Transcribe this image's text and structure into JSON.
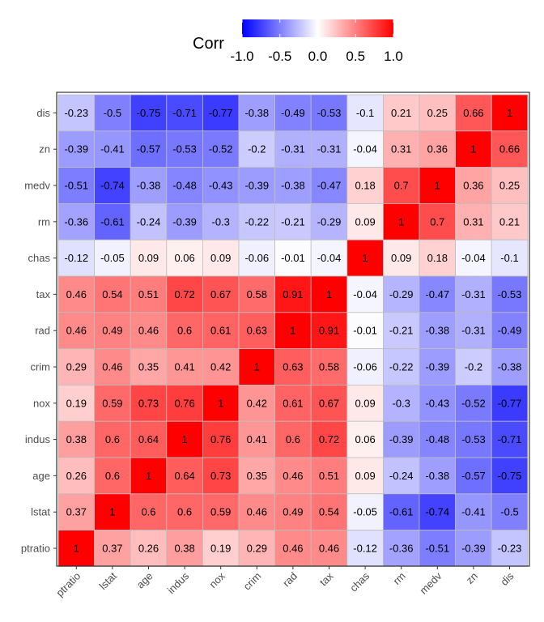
{
  "chart_data": {
    "type": "heatmap",
    "legend": {
      "title": "Corr",
      "placement": "top",
      "ticks": [
        "-1.0",
        "-0.5",
        "0.0",
        "0.5",
        "1.0"
      ],
      "tick_values": [
        -1,
        -0.5,
        0,
        0.5,
        1
      ],
      "range": [
        -1,
        1
      ]
    },
    "colors": {
      "low": "#0000FF",
      "mid": "#FFFFFF",
      "high": "#FF0000"
    },
    "x_labels": [
      "ptratio",
      "lstat",
      "age",
      "indus",
      "nox",
      "crim",
      "rad",
      "tax",
      "chas",
      "rm",
      "medv",
      "zn",
      "dis"
    ],
    "y_labels_top_to_bottom": [
      "dis",
      "zn",
      "medv",
      "rm",
      "chas",
      "tax",
      "rad",
      "crim",
      "nox",
      "indus",
      "age",
      "lstat",
      "ptratio"
    ],
    "values": [
      [
        -0.23,
        -0.5,
        -0.75,
        -0.71,
        -0.77,
        -0.38,
        -0.49,
        -0.53,
        -0.1,
        0.21,
        0.25,
        0.66,
        1
      ],
      [
        -0.39,
        -0.41,
        -0.57,
        -0.53,
        -0.52,
        -0.2,
        -0.31,
        -0.31,
        -0.04,
        0.31,
        0.36,
        1,
        0.66
      ],
      [
        -0.51,
        -0.74,
        -0.38,
        -0.48,
        -0.43,
        -0.39,
        -0.38,
        -0.47,
        0.18,
        0.7,
        1,
        0.36,
        0.25
      ],
      [
        -0.36,
        -0.61,
        -0.24,
        -0.39,
        -0.3,
        -0.22,
        -0.21,
        -0.29,
        0.09,
        1,
        0.7,
        0.31,
        0.21
      ],
      [
        -0.12,
        -0.05,
        0.09,
        0.06,
        0.09,
        -0.06,
        -0.01,
        -0.04,
        1,
        0.09,
        0.18,
        -0.04,
        -0.1
      ],
      [
        0.46,
        0.54,
        0.51,
        0.72,
        0.67,
        0.58,
        0.91,
        1,
        -0.04,
        -0.29,
        -0.47,
        -0.31,
        -0.53
      ],
      [
        0.46,
        0.49,
        0.46,
        0.6,
        0.61,
        0.63,
        1,
        0.91,
        -0.01,
        -0.21,
        -0.38,
        -0.31,
        -0.49
      ],
      [
        0.29,
        0.46,
        0.35,
        0.41,
        0.42,
        1,
        0.63,
        0.58,
        -0.06,
        -0.22,
        -0.39,
        -0.2,
        -0.38
      ],
      [
        0.19,
        0.59,
        0.73,
        0.76,
        1,
        0.42,
        0.61,
        0.67,
        0.09,
        -0.3,
        -0.43,
        -0.52,
        -0.77
      ],
      [
        0.38,
        0.6,
        0.64,
        1,
        0.76,
        0.41,
        0.6,
        0.72,
        0.06,
        -0.39,
        -0.48,
        -0.53,
        -0.71
      ],
      [
        0.26,
        0.6,
        1,
        0.64,
        0.73,
        0.35,
        0.46,
        0.51,
        0.09,
        -0.24,
        -0.38,
        -0.57,
        -0.75
      ],
      [
        0.37,
        1,
        0.6,
        0.6,
        0.59,
        0.46,
        0.49,
        0.54,
        -0.05,
        -0.61,
        -0.74,
        -0.41,
        -0.5
      ],
      [
        1,
        0.37,
        0.26,
        0.38,
        0.19,
        0.29,
        0.46,
        0.46,
        -0.12,
        -0.36,
        -0.51,
        -0.39,
        -0.23
      ]
    ],
    "xlabel": "",
    "ylabel": "",
    "grid": false
  }
}
